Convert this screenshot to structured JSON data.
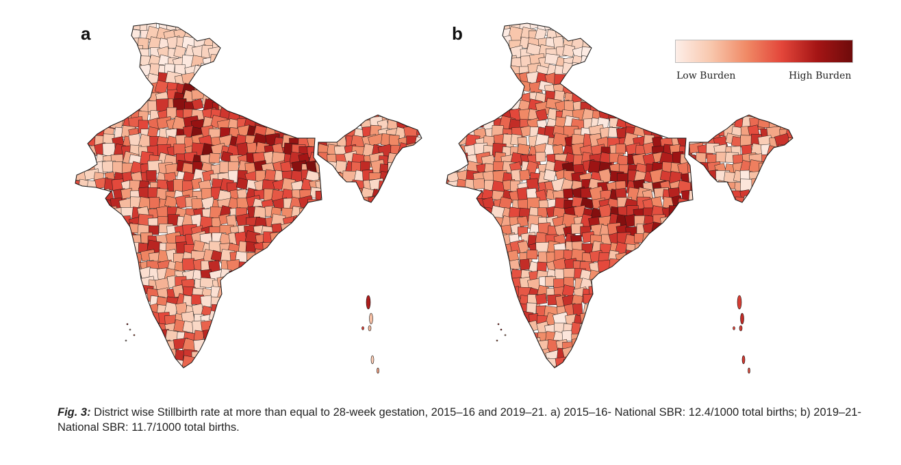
{
  "panels": [
    {
      "label": "a",
      "period": "2015–16"
    },
    {
      "label": "b",
      "period": "2019–21"
    }
  ],
  "legend": {
    "low_label": "Low Burden",
    "high_label": "High Burden",
    "colors": [
      "#fdeee8",
      "#f8c7ad",
      "#f08a66",
      "#e3463a",
      "#a51515",
      "#6e0b0b"
    ]
  },
  "caption": {
    "fig_label": "Fig. 3:",
    "text": " District wise Stillbirth rate at more than equal to 28-week gestation, 2015–16 and 2019–21. a) 2015–16- National SBR: 12.4/1000 total births; b) 2019–21- National SBR: 11.7/1000 total births."
  }
}
